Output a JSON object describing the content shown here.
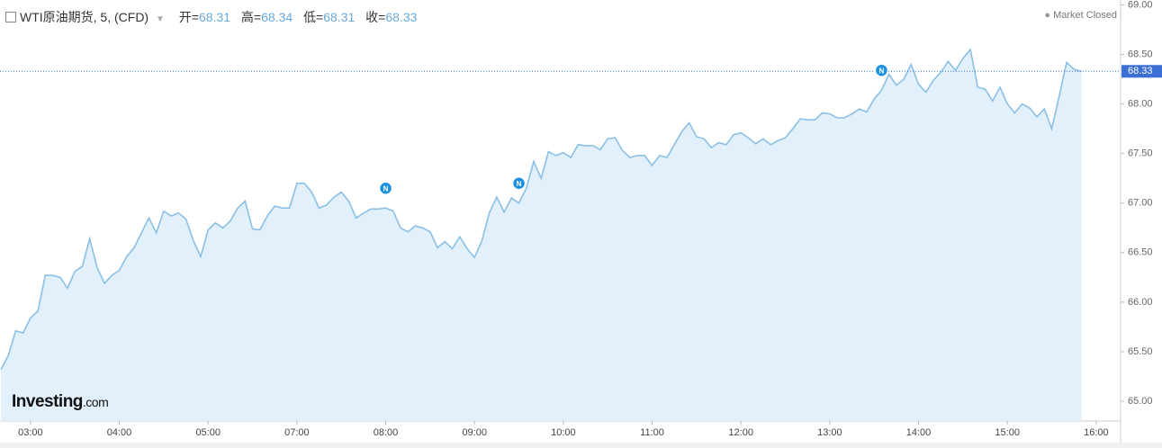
{
  "header": {
    "title": "WTI原油期货, 5, (CFD)",
    "open_label": "开=",
    "open": "68.31",
    "high_label": "高=",
    "high": "68.34",
    "low_label": "低=",
    "low": "68.31",
    "close_label": "收=",
    "close": "68.33",
    "status": "Market Closed",
    "logo": "Investing",
    "logo_suffix": ".com"
  },
  "chart_data": {
    "type": "area",
    "color": "#8bbfe5",
    "fill": "#e1f0fa",
    "values": [
      65.32,
      65.46,
      65.71,
      65.69,
      65.84,
      65.91,
      66.27,
      66.27,
      66.25,
      66.14,
      66.31,
      66.36,
      66.64,
      66.35,
      66.19,
      66.27,
      66.32,
      66.46,
      66.55,
      66.7,
      66.85,
      66.7,
      66.92,
      66.87,
      66.9,
      66.84,
      66.62,
      66.46,
      66.73,
      66.8,
      66.75,
      66.82,
      66.95,
      67.02,
      66.74,
      66.73,
      66.87,
      66.97,
      66.95,
      66.95,
      67.2,
      67.2,
      67.11,
      66.95,
      66.98,
      67.06,
      67.11,
      67.02,
      66.85,
      66.9,
      66.94,
      66.94,
      66.95,
      66.92,
      66.75,
      66.71,
      66.77,
      66.75,
      66.71,
      66.55,
      66.61,
      66.54,
      66.66,
      66.54,
      66.45,
      66.62,
      66.9,
      67.06,
      66.91,
      67.05,
      67.0,
      67.15,
      67.42,
      67.25,
      67.52,
      67.48,
      67.51,
      67.46,
      67.59,
      67.58,
      67.58,
      67.54,
      67.65,
      67.66,
      67.53,
      67.46,
      67.48,
      67.48,
      67.38,
      67.48,
      67.46,
      67.59,
      67.72,
      67.81,
      67.67,
      67.65,
      67.56,
      67.61,
      67.59,
      67.69,
      67.71,
      67.66,
      67.6,
      67.65,
      67.59,
      67.63,
      67.66,
      67.75,
      67.85,
      67.84,
      67.84,
      67.91,
      67.9,
      67.86,
      67.86,
      67.9,
      67.95,
      67.92,
      68.05,
      68.14,
      68.3,
      68.19,
      68.25,
      68.4,
      68.2,
      68.12,
      68.24,
      68.32,
      68.43,
      68.34,
      68.46,
      68.55,
      68.17,
      68.15,
      68.03,
      68.17,
      68.0,
      67.91,
      68.0,
      67.96,
      67.87,
      67.95,
      67.75,
      68.08,
      68.42,
      68.35,
      68.33
    ],
    "xlim": [
      -0.12,
      151.3
    ],
    "xticks": [
      {
        "value": 4,
        "label": "03:00"
      },
      {
        "value": 16,
        "label": "04:00"
      },
      {
        "value": 28,
        "label": "05:00"
      },
      {
        "value": 40,
        "label": "07:00"
      },
      {
        "value": 52,
        "label": "08:00"
      },
      {
        "value": 64,
        "label": "09:00"
      },
      {
        "value": 76,
        "label": "10:00"
      },
      {
        "value": 88,
        "label": "11:00"
      },
      {
        "value": 100,
        "label": "12:00"
      },
      {
        "value": 112,
        "label": "13:00"
      },
      {
        "value": 124,
        "label": "14:00"
      },
      {
        "value": 136,
        "label": "15:00"
      },
      {
        "value": 148,
        "label": "16:00"
      }
    ],
    "ylim": [
      64.8,
      69.05
    ],
    "yticks": [
      {
        "value": 65,
        "label": "65.00"
      },
      {
        "value": 65.5,
        "label": "65.50"
      },
      {
        "value": 66,
        "label": "66.00"
      },
      {
        "value": 66.5,
        "label": "66.50"
      },
      {
        "value": 67,
        "label": "67.00"
      },
      {
        "value": 67.5,
        "label": "67.50"
      },
      {
        "value": 68,
        "label": "68.00"
      },
      {
        "value": 68.5,
        "label": "68.50"
      },
      {
        "value": 69,
        "label": "69.00"
      }
    ],
    "last_price": 68.33,
    "last_price_color": "#3b6fd4",
    "events": [
      {
        "label": "N",
        "x": 52
      },
      {
        "label": "N",
        "x": 70
      },
      {
        "label": "N",
        "x": 119
      }
    ]
  }
}
